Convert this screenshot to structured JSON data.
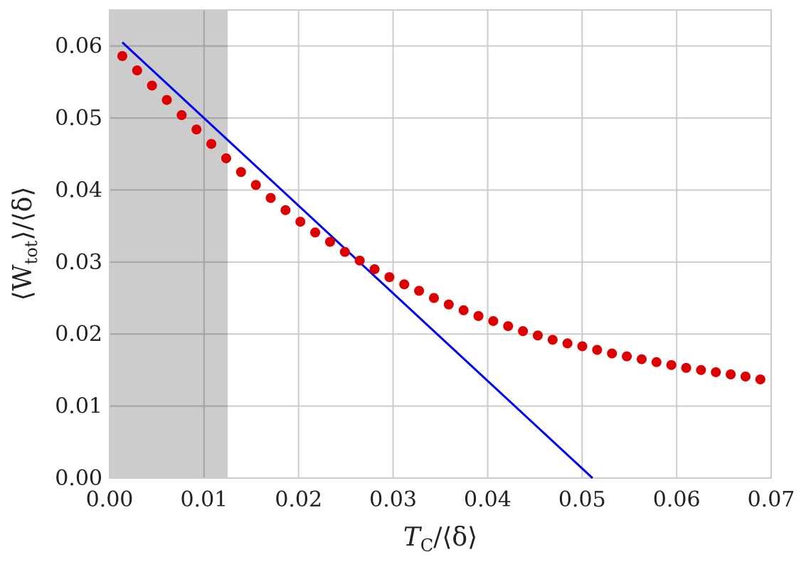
{
  "chart_data": {
    "type": "scatter",
    "x_label": [
      "T",
      "C",
      "/⟨δ⟩"
    ],
    "y_label": [
      "⟨W",
      "tot",
      "⟩/⟨δ⟩"
    ],
    "xlim": [
      0,
      0.07
    ],
    "ylim": [
      0,
      0.065
    ],
    "xticks": [
      {
        "value": 0,
        "label": "0.00"
      },
      0.01,
      0.02,
      0.03,
      0.04,
      0.05,
      0.06,
      0.07
    ],
    "yticks": [
      {
        "value": 0,
        "label": "0.00"
      },
      0.01,
      0.02,
      0.03,
      0.04,
      0.05,
      0.06
    ],
    "grid": true,
    "highlight_xrange": [
      0,
      0.0125
    ],
    "series": [
      {
        "style": "line",
        "color": "#0000ee",
        "x": [
          0.00135,
          0.0511
        ],
        "values": [
          0.0605,
          0
        ]
      },
      {
        "style": "markers",
        "color": "#dd0000",
        "x": [
          0.00135,
          0.00292,
          0.00449,
          0.00606,
          0.00763,
          0.0092,
          0.01077,
          0.01234,
          0.01391,
          0.01548,
          0.01705,
          0.01862,
          0.02019,
          0.02176,
          0.02333,
          0.0249,
          0.02647,
          0.02804,
          0.02961,
          0.03118,
          0.03275,
          0.03432,
          0.03589,
          0.03746,
          0.03903,
          0.0406,
          0.04217,
          0.04374,
          0.04531,
          0.04688,
          0.04845,
          0.05002,
          0.05159,
          0.05316,
          0.05473,
          0.0563,
          0.05787,
          0.05944,
          0.06101,
          0.06258,
          0.06415,
          0.06572,
          0.06729,
          0.06886
        ],
        "values": [
          0.0586,
          0.0566,
          0.0545,
          0.0525,
          0.0504,
          0.0484,
          0.0464,
          0.0444,
          0.0425,
          0.0407,
          0.0389,
          0.0372,
          0.0356,
          0.0341,
          0.0328,
          0.0314,
          0.0302,
          0.029,
          0.0279,
          0.0269,
          0.026,
          0.025,
          0.0241,
          0.0233,
          0.0225,
          0.0218,
          0.0211,
          0.0204,
          0.0198,
          0.0192,
          0.0187,
          0.0183,
          0.0178,
          0.0173,
          0.0169,
          0.0165,
          0.0161,
          0.0157,
          0.0153,
          0.015,
          0.0147,
          0.0144,
          0.0141,
          0.0137
        ]
      }
    ]
  }
}
